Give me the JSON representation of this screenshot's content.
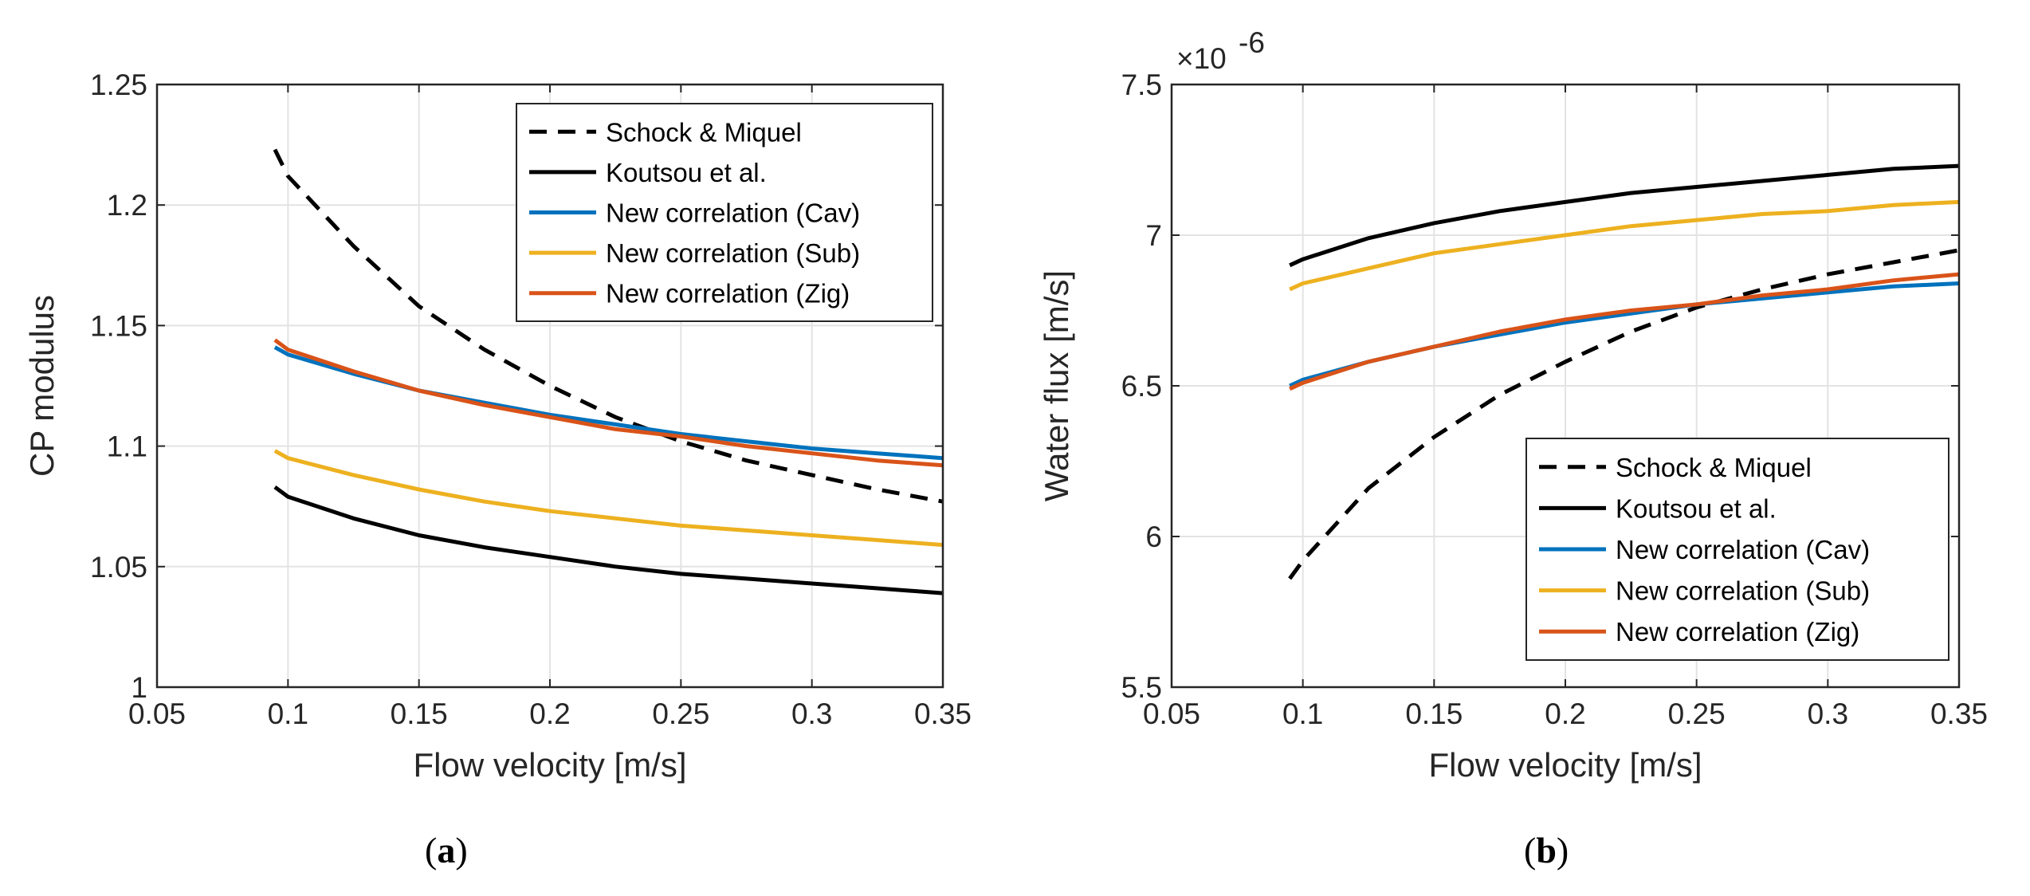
{
  "chart_data": [
    {
      "type": "line",
      "panel_label": "a",
      "title": "",
      "xlabel": "Flow velocity [m/s]",
      "ylabel": "CP modulus",
      "xlim": [
        0.05,
        0.35
      ],
      "ylim": [
        1,
        1.25
      ],
      "xticks": [
        "0.05",
        "0.1",
        "0.15",
        "0.2",
        "0.25",
        "0.3",
        "0.35"
      ],
      "yticks": [
        "1",
        "1.05",
        "1.1",
        "1.15",
        "1.2",
        "1.25"
      ],
      "grid": true,
      "legend_position": "top-right",
      "x": [
        0.095,
        0.1,
        0.125,
        0.15,
        0.175,
        0.2,
        0.225,
        0.25,
        0.275,
        0.3,
        0.325,
        0.35
      ],
      "series": [
        {
          "name": "Schock & Miquel",
          "color": "#000000",
          "dash": true,
          "values": [
            1.223,
            1.212,
            1.183,
            1.158,
            1.14,
            1.125,
            1.112,
            1.102,
            1.094,
            1.088,
            1.082,
            1.077
          ]
        },
        {
          "name": "Koutsou et al.",
          "color": "#000000",
          "dash": false,
          "values": [
            1.083,
            1.079,
            1.07,
            1.063,
            1.058,
            1.054,
            1.05,
            1.047,
            1.045,
            1.043,
            1.041,
            1.039
          ]
        },
        {
          "name": "New correlation (Cav)",
          "color": "#0072BD",
          "dash": false,
          "values": [
            1.141,
            1.138,
            1.13,
            1.123,
            1.118,
            1.113,
            1.109,
            1.105,
            1.102,
            1.099,
            1.097,
            1.095
          ]
        },
        {
          "name": "New correlation (Sub)",
          "color": "#EDB120",
          "dash": false,
          "values": [
            1.098,
            1.095,
            1.088,
            1.082,
            1.077,
            1.073,
            1.07,
            1.067,
            1.065,
            1.063,
            1.061,
            1.059
          ]
        },
        {
          "name": "New correlation (Zig)",
          "color": "#D95319",
          "dash": false,
          "values": [
            1.144,
            1.14,
            1.131,
            1.123,
            1.117,
            1.112,
            1.107,
            1.104,
            1.1,
            1.097,
            1.094,
            1.092
          ]
        }
      ]
    },
    {
      "type": "line",
      "panel_label": "b",
      "title": "",
      "xlabel": "Flow velocity [m/s]",
      "ylabel": "Water flux [m/s]",
      "y_exponent_base": "×10",
      "y_exponent_power": "-6",
      "xlim": [
        0.05,
        0.35
      ],
      "ylim": [
        5.5,
        7.5
      ],
      "xticks": [
        "0.05",
        "0.1",
        "0.15",
        "0.2",
        "0.25",
        "0.3",
        "0.35"
      ],
      "yticks": [
        "5.5",
        "6",
        "6.5",
        "7",
        "7.5"
      ],
      "grid": true,
      "legend_position": "bottom-right",
      "x": [
        0.095,
        0.1,
        0.125,
        0.15,
        0.175,
        0.2,
        0.225,
        0.25,
        0.275,
        0.3,
        0.325,
        0.35
      ],
      "series": [
        {
          "name": "Schock & Miquel",
          "color": "#000000",
          "dash": true,
          "values": [
            5.86,
            5.92,
            6.16,
            6.33,
            6.47,
            6.58,
            6.68,
            6.76,
            6.82,
            6.87,
            6.91,
            6.95
          ]
        },
        {
          "name": "Koutsou et al.",
          "color": "#000000",
          "dash": false,
          "values": [
            6.9,
            6.92,
            6.99,
            7.04,
            7.08,
            7.11,
            7.14,
            7.16,
            7.18,
            7.2,
            7.22,
            7.23
          ]
        },
        {
          "name": "New correlation (Cav)",
          "color": "#0072BD",
          "dash": false,
          "values": [
            6.5,
            6.52,
            6.58,
            6.63,
            6.67,
            6.71,
            6.74,
            6.77,
            6.79,
            6.81,
            6.83,
            6.84
          ]
        },
        {
          "name": "New correlation (Sub)",
          "color": "#EDB120",
          "dash": false,
          "values": [
            6.82,
            6.84,
            6.89,
            6.94,
            6.97,
            7.0,
            7.03,
            7.05,
            7.07,
            7.08,
            7.1,
            7.11
          ]
        },
        {
          "name": "New correlation (Zig)",
          "color": "#D95319",
          "dash": false,
          "values": [
            6.49,
            6.51,
            6.58,
            6.63,
            6.68,
            6.72,
            6.75,
            6.77,
            6.8,
            6.82,
            6.85,
            6.87
          ]
        }
      ]
    }
  ]
}
